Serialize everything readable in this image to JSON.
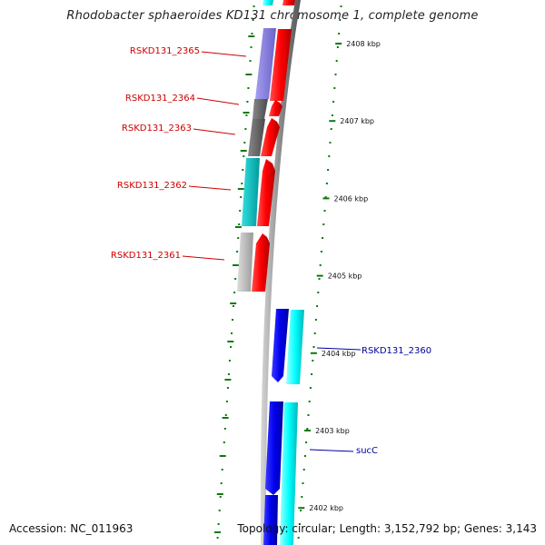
{
  "title": "Rhodobacter sphaeroides KD131 chromosome 1, complete genome",
  "footer": {
    "accession_label": "Accession: NC_011963",
    "summary": "Topology: circular; Length: 3,152,792 bp; Genes: 3,143"
  },
  "colors": {
    "backbone": "#808080",
    "tick": "#0a7a0a",
    "forward_gene": "#ff0000",
    "reverse_gene": "#0000ee",
    "reverse_gene_light": "#00ffff",
    "label_forward": "#cc0000",
    "label_reverse": "#000099"
  },
  "scale_marks": [
    {
      "kbp": 2408,
      "label": "2408 kbp"
    },
    {
      "kbp": 2407,
      "label": "2407 kbp"
    },
    {
      "kbp": 2406,
      "label": "2406 kbp"
    },
    {
      "kbp": 2405,
      "label": "2405 kbp"
    },
    {
      "kbp": 2404,
      "label": "2404 kbp"
    },
    {
      "kbp": 2403,
      "label": "2403 kbp"
    },
    {
      "kbp": 2402,
      "label": "2402 kbp"
    }
  ],
  "genes": [
    {
      "label": "RSKD131_2365",
      "strand": "forward",
      "category_color": "#8a80dd"
    },
    {
      "label": "RSKD131_2364",
      "strand": "forward",
      "category_color": "#666666"
    },
    {
      "label": "RSKD131_2363",
      "strand": "forward",
      "category_color": "#666666"
    },
    {
      "label": "RSKD131_2362",
      "strand": "forward",
      "category_color": "#00cccc"
    },
    {
      "label": "RSKD131_2361",
      "strand": "forward",
      "category_color": "#bbbbbb"
    },
    {
      "label": "RSKD131_2360",
      "strand": "reverse",
      "category_color": "#00ffff"
    },
    {
      "label": "sucC",
      "strand": "reverse",
      "category_color": "#00ffff"
    }
  ]
}
